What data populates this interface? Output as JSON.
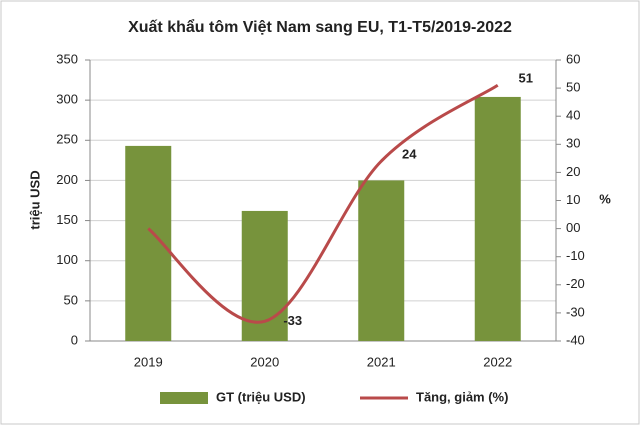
{
  "chart_data": {
    "type": "bar-line",
    "title": "Xuất khẩu tôm Việt Nam sang EU, T1-T5/2019-2022",
    "y_label": "triệu USD",
    "y2_label": "%",
    "categories": [
      "2019",
      "2020",
      "2021",
      "2022"
    ],
    "series": [
      {
        "name": "GT (triệu USD)",
        "type": "bar",
        "color": "#77933c",
        "values": [
          243,
          162,
          200,
          304
        ]
      },
      {
        "name": "Tăng, giảm (%)",
        "type": "line",
        "axis": "y2",
        "color": "#b94a4a",
        "values": [
          0,
          -33,
          24,
          51
        ],
        "value_labels": [
          null,
          "-33",
          "24",
          "51"
        ]
      }
    ],
    "ylim": [
      0,
      350
    ],
    "yticks": [
      0,
      50,
      100,
      150,
      200,
      250,
      300,
      350
    ],
    "y2lim": [
      -40,
      60
    ],
    "y2ticks": [
      -40,
      -30,
      -20,
      -10,
      {
        "value": 0,
        "label": "00"
      },
      10,
      20,
      30,
      40,
      50,
      60
    ],
    "grid": true,
    "legend": "bottom"
  }
}
